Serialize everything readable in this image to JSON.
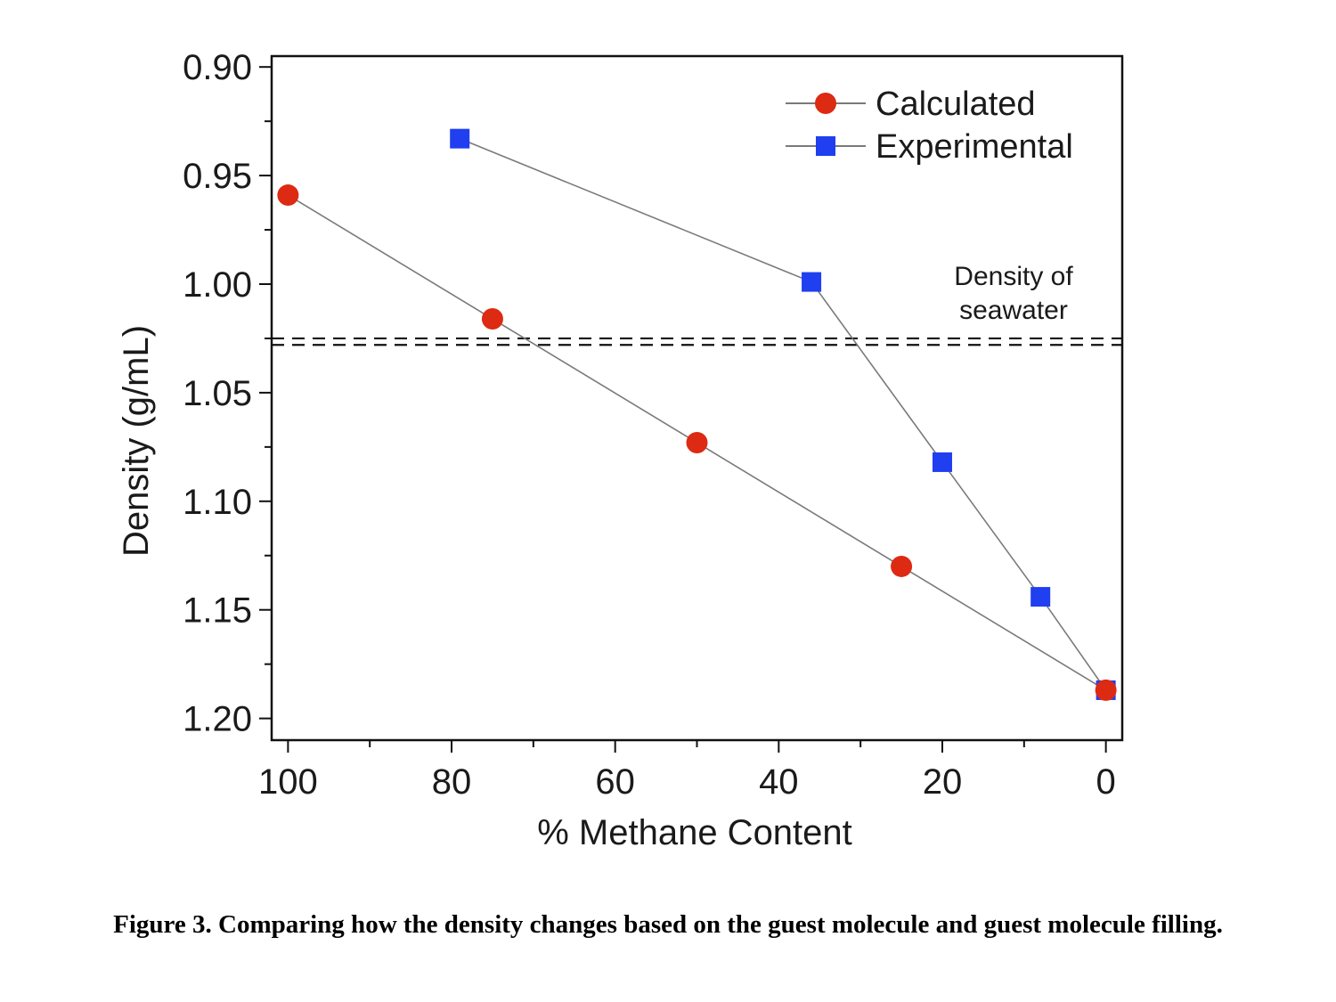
{
  "chart_data": {
    "type": "line",
    "xlabel": "% Methane Content",
    "ylabel": "Density (g/mL)",
    "xlim": [
      102,
      -2
    ],
    "ylim": [
      0.895,
      1.21
    ],
    "x_reversed": true,
    "y_reversed": true,
    "x_ticks": [
      100,
      80,
      60,
      40,
      20,
      0
    ],
    "x_tick_labels": [
      "100",
      "80",
      "60",
      "40",
      "20",
      "0"
    ],
    "x_minor_ticks": [
      90,
      70,
      50,
      30,
      10
    ],
    "y_ticks": [
      0.9,
      0.95,
      1.0,
      1.05,
      1.1,
      1.15,
      1.2
    ],
    "y_tick_labels": [
      "0.90",
      "0.95",
      "1.00",
      "1.05",
      "1.10",
      "1.15",
      "1.20"
    ],
    "y_minor_ticks": [
      0.925,
      0.975,
      1.025,
      1.075,
      1.125,
      1.175
    ],
    "series": [
      {
        "name": "Calculated",
        "marker": "circle",
        "color": "#dd2a12",
        "x": [
          100,
          75,
          50,
          25,
          0
        ],
        "y": [
          0.959,
          1.016,
          1.073,
          1.13,
          1.187
        ]
      },
      {
        "name": "Experimental",
        "marker": "square",
        "color": "#1f3ff0",
        "x": [
          79,
          36,
          20,
          8,
          0
        ],
        "y": [
          0.933,
          0.999,
          1.082,
          1.144,
          1.187
        ]
      }
    ],
    "reference_lines": [
      {
        "y": 1.025,
        "style": "dashed"
      },
      {
        "y": 1.028,
        "style": "dashed"
      }
    ],
    "annotation": [
      "Density of",
      "seawater"
    ],
    "legend_position": "top-right",
    "line_color": "#7a7a7a",
    "grid": false
  },
  "caption": "Figure 3.  Comparing how the density changes based on the guest molecule and guest molecule filling."
}
